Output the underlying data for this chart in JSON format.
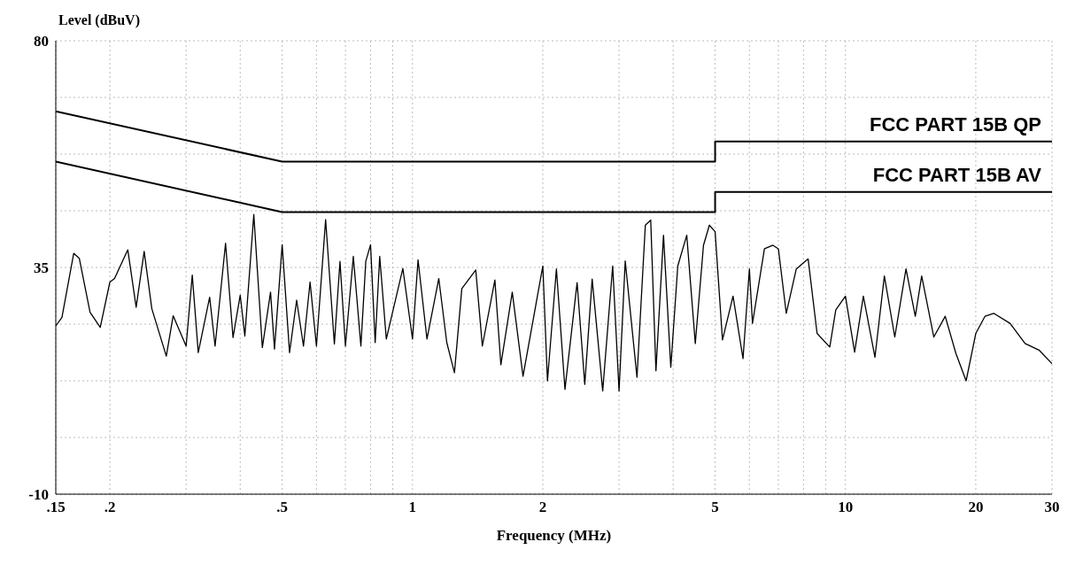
{
  "chart_data": {
    "type": "line",
    "xlabel": "Frequency (MHz)",
    "ylabel": "Level (dBuV)",
    "log": "x",
    "grid": true,
    "xlim": [
      0.15,
      30
    ],
    "ylim": [
      -10,
      80
    ],
    "xticks": [
      {
        "value": 0.15,
        "label": ".15"
      },
      {
        "value": 0.2,
        "label": ".2"
      },
      {
        "value": 0.3,
        "label": null
      },
      {
        "value": 0.4,
        "label": null
      },
      {
        "value": 0.5,
        "label": ".5"
      },
      {
        "value": 0.6,
        "label": null
      },
      {
        "value": 0.7,
        "label": null
      },
      {
        "value": 0.8,
        "label": null
      },
      {
        "value": 0.9,
        "label": null
      },
      1,
      2,
      {
        "value": 3,
        "label": null
      },
      {
        "value": 4,
        "label": null
      },
      5,
      {
        "value": 6,
        "label": null
      },
      {
        "value": 7,
        "label": null
      },
      {
        "value": 8,
        "label": null
      },
      {
        "value": 9,
        "label": null
      },
      10,
      20,
      30
    ],
    "yticks": [
      -10,
      {
        "value": 1.25,
        "label": null
      },
      {
        "value": 12.5,
        "label": null
      },
      {
        "value": 23.75,
        "label": null
      },
      35,
      {
        "value": 46.25,
        "label": null
      },
      {
        "value": 57.5,
        "label": null
      },
      {
        "value": 68.75,
        "label": null
      },
      80
    ],
    "series": [
      {
        "name": "FCC PART 15B QP",
        "color": "#000000",
        "x": [
          0.15,
          0.5,
          5,
          5,
          30
        ],
        "values": [
          66,
          56,
          56,
          60,
          60
        ]
      },
      {
        "name": "FCC PART 15B AV",
        "color": "#000000",
        "x": [
          0.15,
          0.5,
          5,
          5,
          30
        ],
        "values": [
          56,
          46,
          46,
          50,
          50
        ]
      },
      {
        "color": "#000000",
        "x": [
          0.15,
          0.155,
          0.165,
          0.17,
          0.18,
          0.19,
          0.2,
          0.205,
          0.22,
          0.23,
          0.24,
          0.25,
          0.27,
          0.28,
          0.3,
          0.31,
          0.32,
          0.34,
          0.35,
          0.37,
          0.385,
          0.4,
          0.41,
          0.43,
          0.45,
          0.47,
          0.48,
          0.5,
          0.52,
          0.54,
          0.56,
          0.58,
          0.6,
          0.63,
          0.66,
          0.68,
          0.7,
          0.73,
          0.76,
          0.78,
          0.8,
          0.82,
          0.84,
          0.87,
          0.95,
          1.0,
          1.03,
          1.08,
          1.15,
          1.2,
          1.25,
          1.3,
          1.4,
          1.45,
          1.55,
          1.6,
          1.7,
          1.8,
          2.0,
          2.05,
          2.15,
          2.25,
          2.4,
          2.5,
          2.6,
          2.75,
          2.9,
          3.0,
          3.1,
          3.3,
          3.45,
          3.55,
          3.65,
          3.8,
          3.95,
          4.1,
          4.3,
          4.5,
          4.7,
          4.85,
          5.0,
          5.2,
          5.5,
          5.8,
          6.0,
          6.1,
          6.5,
          6.8,
          7.0,
          7.3,
          7.7,
          8.2,
          8.6,
          9.2,
          9.5,
          10,
          10.5,
          11,
          11.7,
          12.3,
          13,
          13.8,
          14.5,
          15,
          16,
          17,
          18,
          19,
          20,
          21,
          22,
          24,
          26,
          28,
          30
        ],
        "values": [
          23.4,
          25.1,
          37.8,
          36.8,
          26.1,
          23.1,
          32.1,
          32.8,
          38.5,
          27.1,
          38.2,
          26.8,
          17.4,
          25.4,
          19.4,
          33.5,
          18.1,
          29.1,
          19.4,
          39.8,
          21.1,
          29.5,
          21.4,
          45.5,
          19.1,
          30.1,
          18.8,
          39.5,
          18.1,
          28.5,
          19.4,
          32.1,
          19.4,
          44.5,
          19.8,
          36.2,
          19.4,
          37.2,
          19.4,
          36.2,
          39.5,
          20.1,
          37.2,
          20.8,
          34.8,
          20.8,
          36.5,
          20.8,
          32.8,
          20.1,
          14.1,
          30.8,
          34.5,
          19.4,
          32.5,
          15.7,
          30.1,
          13.4,
          35.3,
          12.5,
          34.7,
          10.8,
          32,
          11.8,
          32.7,
          10.5,
          35.3,
          10.5,
          36.3,
          13.2,
          43.4,
          44.4,
          14.5,
          41.4,
          15.2,
          35.3,
          41.4,
          19.9,
          39.4,
          43.4,
          42.1,
          20.6,
          29.3,
          16.9,
          34.7,
          23.9,
          38.7,
          39.4,
          38.7,
          25.9,
          34.7,
          36.7,
          21.9,
          19.2,
          26.6,
          29.3,
          18.2,
          29.3,
          17.2,
          33.3,
          21.2,
          34.7,
          25.3,
          33.3,
          21.2,
          25.3,
          17.9,
          12.5,
          21.9,
          25.3,
          25.9,
          23.9,
          19.9,
          18.6,
          15.9
        ]
      }
    ]
  }
}
